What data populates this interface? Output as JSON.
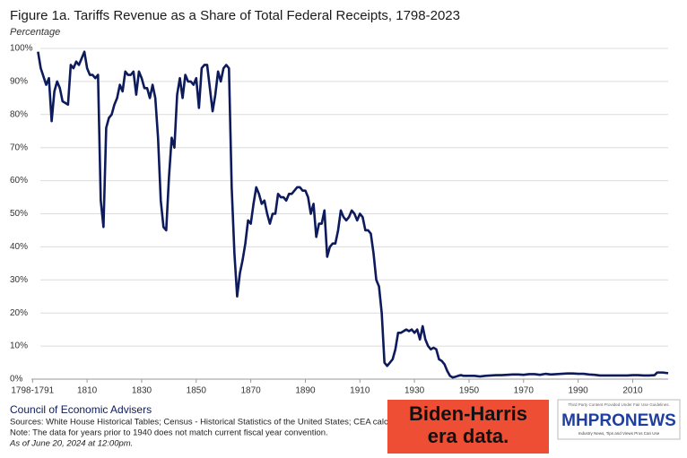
{
  "chart_data": {
    "type": "line",
    "title": "Figure 1a. Tariffs Revenue as a Share of Total Federal Receipts, 1798-2023",
    "subtitle": "Percentage",
    "color": "#0d1a5c",
    "grid": true,
    "xlim": [
      1783,
      2023
    ],
    "xticks": [
      {
        "value": 1790,
        "label": "1798-1791"
      },
      1810,
      1830,
      1850,
      1870,
      1890,
      1910,
      1930,
      1950,
      1970,
      1990,
      2010
    ],
    "ylim": [
      0,
      100
    ],
    "yticks": [
      {
        "value": 0,
        "label": "0%"
      },
      {
        "value": 10,
        "label": "10%"
      },
      {
        "value": 20,
        "label": "20%"
      },
      {
        "value": 30,
        "label": "30%"
      },
      {
        "value": 40,
        "label": "40%"
      },
      {
        "value": 50,
        "label": "50%"
      },
      {
        "value": 60,
        "label": "60%"
      },
      {
        "value": 70,
        "label": "70%"
      },
      {
        "value": 80,
        "label": "80%"
      },
      {
        "value": 90,
        "label": "90%"
      },
      {
        "value": 100,
        "label": "100%"
      }
    ],
    "x": [
      1792,
      1793,
      1795,
      1796,
      1797,
      1798,
      1799,
      1800,
      1801,
      1803,
      1804,
      1805,
      1806,
      1807,
      1808,
      1809,
      1810,
      1811,
      1812,
      1813,
      1814,
      1815,
      1816,
      1817,
      1818,
      1819,
      1820,
      1821,
      1822,
      1823,
      1824,
      1825,
      1826,
      1827,
      1828,
      1829,
      1830,
      1831,
      1832,
      1833,
      1834,
      1835,
      1836,
      1837,
      1838,
      1839,
      1840,
      1841,
      1842,
      1843,
      1844,
      1845,
      1846,
      1847,
      1848,
      1849,
      1850,
      1851,
      1852,
      1853,
      1854,
      1855,
      1856,
      1857,
      1858,
      1859,
      1860,
      1861,
      1862,
      1863,
      1864,
      1865,
      1866,
      1867,
      1868,
      1869,
      1870,
      1871,
      1872,
      1873,
      1874,
      1875,
      1876,
      1877,
      1878,
      1879,
      1880,
      1881,
      1882,
      1883,
      1884,
      1885,
      1886,
      1887,
      1888,
      1889,
      1890,
      1891,
      1892,
      1893,
      1894,
      1895,
      1896,
      1897,
      1898,
      1899,
      1900,
      1901,
      1902,
      1903,
      1904,
      1905,
      1906,
      1907,
      1908,
      1909,
      1910,
      1911,
      1912,
      1913,
      1914,
      1915,
      1916,
      1917,
      1918,
      1919,
      1920,
      1921,
      1922,
      1923,
      1924,
      1925,
      1926,
      1927,
      1928,
      1929,
      1930,
      1931,
      1932,
      1933,
      1934,
      1935,
      1936,
      1937,
      1938,
      1939,
      1940,
      1941,
      1942,
      1943,
      1944,
      1945,
      1946,
      1947,
      1948,
      1949,
      1950,
      1952,
      1954,
      1956,
      1958,
      1960,
      1962,
      1964,
      1966,
      1968,
      1970,
      1972,
      1974,
      1976,
      1978,
      1980,
      1982,
      1984,
      1986,
      1988,
      1990,
      1992,
      1994,
      1996,
      1998,
      2000,
      2002,
      2004,
      2006,
      2008,
      2010,
      2012,
      2014,
      2016,
      2018,
      2019,
      2020,
      2021,
      2022,
      2023
    ],
    "values": [
      99,
      94,
      89,
      91,
      78,
      87,
      90,
      88,
      84,
      83,
      95,
      94,
      96,
      95,
      97,
      99,
      94,
      92,
      92,
      91,
      92,
      54,
      46,
      76,
      79,
      80,
      83,
      85,
      89,
      87,
      93,
      92,
      92,
      93,
      86,
      93,
      91,
      88,
      88,
      85,
      89,
      85,
      73,
      54,
      46,
      45,
      61,
      73,
      70,
      86,
      91,
      85,
      92,
      90,
      90,
      89,
      91,
      82,
      94,
      95,
      95,
      88,
      81,
      86,
      93,
      90,
      94,
      95,
      94,
      58,
      38,
      25,
      32,
      36,
      41,
      48,
      47,
      53,
      58,
      56,
      53,
      54,
      50,
      47,
      50,
      50,
      56,
      55,
      55,
      54,
      56,
      56,
      57,
      58,
      58,
      57,
      57,
      55,
      50,
      53,
      43,
      47,
      47,
      51,
      37,
      40,
      41,
      41,
      45,
      51,
      49,
      48,
      49,
      51,
      50,
      48,
      50,
      49,
      45,
      45,
      44,
      38,
      30,
      28,
      20,
      5,
      4,
      5,
      6,
      9,
      14,
      14,
      14.5,
      15,
      14.5,
      15,
      14,
      15,
      12,
      16,
      12,
      10,
      9,
      9.5,
      9,
      6,
      5.5,
      4.5,
      2.5,
      1,
      0.5,
      0.7,
      1,
      1.2,
      1,
      1,
      1,
      1,
      0.8,
      1,
      1.1,
      1.2,
      1.2,
      1.3,
      1.4,
      1.4,
      1.3,
      1.5,
      1.5,
      1.3,
      1.6,
      1.4,
      1.5,
      1.6,
      1.7,
      1.7,
      1.6,
      1.6,
      1.4,
      1.3,
      1.1,
      1.1,
      1.1,
      1.1,
      1.1,
      1.1,
      1.2,
      1.2,
      1.1,
      1.1,
      1.2,
      2,
      2,
      2,
      1.9,
      1.8
    ],
    "source": "Council of Economic Advisers",
    "notes": [
      "Sources: White House Historical Tables; Census - Historical Statistics of the United States; CEA calculations.",
      "Note: The data for years prior to 1940 does not match current fiscal year convention.",
      "As of June 20, 2024 at 12:00pm."
    ],
    "annotation": [
      "Biden-Harris",
      "era data."
    ],
    "logo": {
      "top": "Third Party Content Provided Under Fair Use Guidelines.",
      "name": "MHPRONEWS",
      "tagline": "Industry News, Tips and Views Pros Can Use"
    }
  }
}
